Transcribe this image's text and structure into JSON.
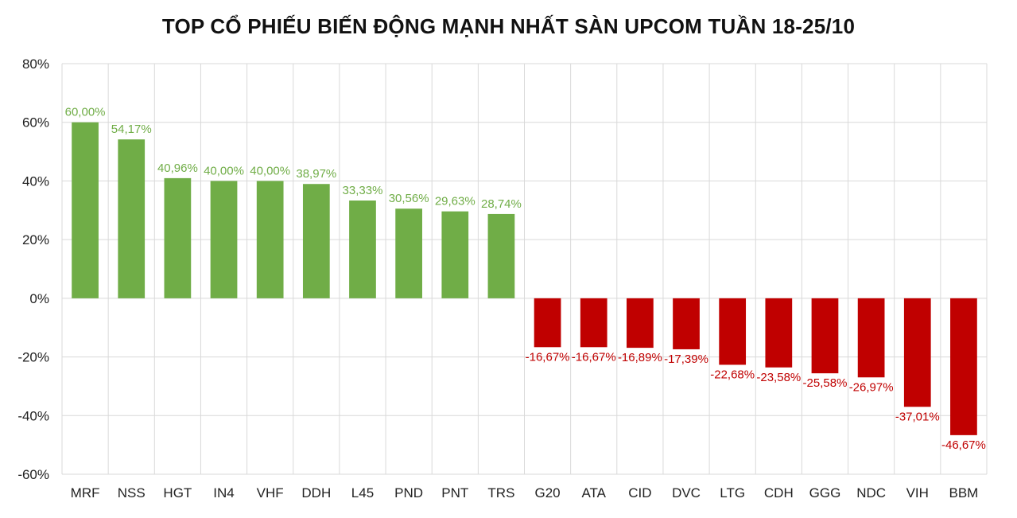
{
  "chart_data": {
    "type": "bar",
    "title": "TOP CỔ PHIẾU BIẾN ĐỘNG MẠNH NHẤT SÀN UPCOM TUẦN 18-25/10",
    "xlabel": "",
    "ylabel": "",
    "ylim": [
      -60,
      80
    ],
    "yticks": [
      -60,
      -40,
      -20,
      0,
      20,
      40,
      60,
      80
    ],
    "ytick_labels": [
      "-60%",
      "-40%",
      "-20%",
      "0%",
      "20%",
      "40%",
      "60%",
      "80%"
    ],
    "grid": true,
    "legend": "none",
    "categories": [
      "MRF",
      "NSS",
      "HGT",
      "IN4",
      "VHF",
      "DDH",
      "L45",
      "PND",
      "PNT",
      "TRS",
      "G20",
      "ATA",
      "CID",
      "DVC",
      "LTG",
      "CDH",
      "GGG",
      "NDC",
      "VIH",
      "BBM"
    ],
    "values": [
      60.0,
      54.17,
      40.96,
      40.0,
      40.0,
      38.97,
      33.33,
      30.56,
      29.63,
      28.74,
      -16.67,
      -16.67,
      -16.89,
      -17.39,
      -22.68,
      -23.58,
      -25.58,
      -26.97,
      -37.01,
      -46.67
    ],
    "data_labels": [
      "60,00%",
      "54,17%",
      "40,96%",
      "40,00%",
      "40,00%",
      "38,97%",
      "33,33%",
      "30,56%",
      "29,63%",
      "28,74%",
      "-16,67%",
      "-16,67%",
      "-16,89%",
      "-17,39%",
      "-22,68%",
      "-23,58%",
      "-25,58%",
      "-26,97%",
      "-37,01%",
      "-46,67%"
    ],
    "colors": {
      "positive_bar": "#70ad47",
      "negative_bar": "#c00000",
      "positive_label": "#70ad47",
      "negative_label": "#c00000",
      "grid": "#d9d9d9"
    }
  }
}
